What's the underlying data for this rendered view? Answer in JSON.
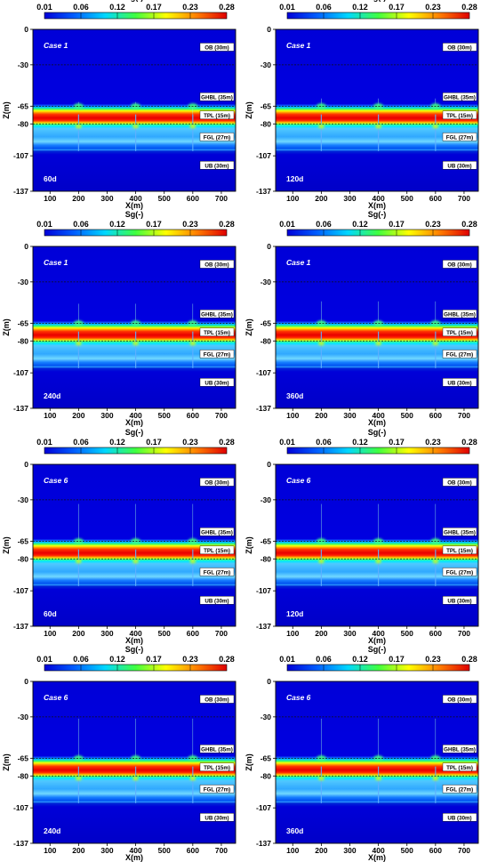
{
  "figure": {
    "panel_order": [
      "case1-60d",
      "case1-120d",
      "case1-240d",
      "case1-360d",
      "case6-60d",
      "case6-120d",
      "case6-240d",
      "case6-360d"
    ]
  },
  "colorbar": {
    "title": "Sg(-)",
    "ticks": [
      "0.01",
      "0.06",
      "0.12",
      "0.17",
      "0.23",
      "0.28"
    ],
    "stops": [
      "#0000d8",
      "#0060ff",
      "#00d8ff",
      "#40ff40",
      "#ffff00",
      "#ff8000",
      "#e00000"
    ]
  },
  "chart_data": [
    {
      "id": "case1-60d",
      "type": "heatmap",
      "case_label": "Case  1",
      "time_label": "60d",
      "xlabel": "X(m)",
      "ylabel": "Z(m)",
      "xticks": [
        "100",
        "200",
        "300",
        "400",
        "500",
        "600",
        "700"
      ],
      "yticks": [
        "0",
        "-30",
        "-65",
        "-80",
        "-107",
        "-137"
      ],
      "xlim": [
        40,
        750
      ],
      "ylim": [
        -137,
        0
      ],
      "plume_tips": [
        -60,
        -60,
        -75
      ],
      "plume_tip_values": [
        0.06,
        0.06,
        0.06
      ],
      "layers": [
        {
          "label": "OB  (30m)"
        },
        {
          "label": "GHBL  (35m)"
        },
        {
          "label": "TPL  (15m)"
        },
        {
          "label": "FGL  (27m)"
        },
        {
          "label": "UB  (30m)"
        }
      ]
    },
    {
      "id": "case1-120d",
      "type": "heatmap",
      "case_label": "Case  1",
      "time_label": "120d",
      "xlabel": "X(m)",
      "ylabel": "Z(m)",
      "xticks": [
        "100",
        "200",
        "300",
        "400",
        "500",
        "600",
        "700"
      ],
      "yticks": [
        "0",
        "-30",
        "-65",
        "-80",
        "-107",
        "-137"
      ],
      "xlim": [
        40,
        750
      ],
      "ylim": [
        -137,
        0
      ],
      "plume_tips": [
        -57,
        -57,
        -57
      ],
      "plume_tip_values": [
        0.06,
        0.06,
        0.06
      ],
      "layers": [
        {
          "label": "OB  (30m)"
        },
        {
          "label": "GHBL  (35m)"
        },
        {
          "label": "TPL  (15m)"
        },
        {
          "label": "FGL  (27m)"
        },
        {
          "label": "UB  (30m)"
        }
      ]
    },
    {
      "id": "case1-240d",
      "type": "heatmap",
      "case_label": "Case  1",
      "time_label": "240d",
      "xlabel": "X(m)",
      "ylabel": "Z(m)",
      "xticks": [
        "100",
        "200",
        "300",
        "400",
        "500",
        "600",
        "700"
      ],
      "yticks": [
        "0",
        "-30",
        "-65",
        "-80",
        "-107",
        "-137"
      ],
      "xlim": [
        40,
        750
      ],
      "ylim": [
        -137,
        0
      ],
      "plume_tips": [
        -47,
        -47,
        -47
      ],
      "plume_tip_values": [
        0.06,
        0.06,
        0.06
      ],
      "layers": [
        {
          "label": "OB  (30m)"
        },
        {
          "label": "GHBL  (35m)"
        },
        {
          "label": "TPL  (15m)"
        },
        {
          "label": "FGL  (27m)"
        },
        {
          "label": "UB  (30m)"
        }
      ]
    },
    {
      "id": "case1-360d",
      "type": "heatmap",
      "case_label": "Case  1",
      "time_label": "360d",
      "xlabel": "X(m)",
      "ylabel": "Z(m)",
      "xticks": [
        "100",
        "200",
        "300",
        "400",
        "500",
        "600",
        "700"
      ],
      "yticks": [
        "0",
        "-30",
        "-65",
        "-80",
        "-107",
        "-137"
      ],
      "xlim": [
        40,
        750
      ],
      "ylim": [
        -137,
        0
      ],
      "plume_tips": [
        -45,
        -45,
        -45
      ],
      "plume_tip_values": [
        0.06,
        0.06,
        0.06
      ],
      "layers": [
        {
          "label": "OB  (30m)"
        },
        {
          "label": "GHBL  (35m)"
        },
        {
          "label": "TPL  (15m)"
        },
        {
          "label": "FGL  (27m)"
        },
        {
          "label": "UB  (30m)"
        }
      ]
    },
    {
      "id": "case6-60d",
      "type": "heatmap",
      "case_label": "Case  6",
      "time_label": "60d",
      "xlabel": "X(m)",
      "ylabel": "Z(m)",
      "xticks": [
        "100",
        "200",
        "300",
        "400",
        "500",
        "600",
        "700"
      ],
      "yticks": [
        "0",
        "-30",
        "-65",
        "-80",
        "-107",
        "-137"
      ],
      "xlim": [
        40,
        750
      ],
      "ylim": [
        -137,
        0
      ],
      "plume_tips": [
        -32,
        -32,
        -32
      ],
      "plume_tip_values": [
        0.12,
        0.12,
        0.12
      ],
      "layers": [
        {
          "label": "OB  (30m)"
        },
        {
          "label": "GHBL  (35m)"
        },
        {
          "label": "TPL  (15m)"
        },
        {
          "label": "FGL  (27m)"
        },
        {
          "label": "UB  (30m)"
        }
      ]
    },
    {
      "id": "case6-120d",
      "type": "heatmap",
      "case_label": "Case  6",
      "time_label": "120d",
      "xlabel": "X(m)",
      "ylabel": "Z(m)",
      "xticks": [
        "100",
        "200",
        "300",
        "400",
        "500",
        "600",
        "700"
      ],
      "yticks": [
        "0",
        "-30",
        "-65",
        "-80",
        "-107",
        "-137"
      ],
      "xlim": [
        40,
        750
      ],
      "ylim": [
        -137,
        0
      ],
      "plume_tips": [
        -32,
        -32,
        -32
      ],
      "plume_tip_values": [
        0.12,
        0.12,
        0.12
      ],
      "layers": [
        {
          "label": "OB  (30m)"
        },
        {
          "label": "GHBL  (35m)"
        },
        {
          "label": "TPL  (15m)"
        },
        {
          "label": "FGL  (27m)"
        },
        {
          "label": "UB  (30m)"
        }
      ]
    },
    {
      "id": "case6-240d",
      "type": "heatmap",
      "case_label": "Case  6",
      "time_label": "240d",
      "xlabel": "X(m)",
      "ylabel": "Z(m)",
      "xticks": [
        "100",
        "200",
        "300",
        "400",
        "500",
        "600",
        "700"
      ],
      "yticks": [
        "0",
        "-30",
        "-65",
        "-80",
        "-107",
        "-137"
      ],
      "xlim": [
        40,
        750
      ],
      "ylim": [
        -137,
        0
      ],
      "plume_tips": [
        -30,
        -30,
        -30
      ],
      "plume_tip_values": [
        0.12,
        0.12,
        0.12
      ],
      "layers": [
        {
          "label": "OB  (30m)"
        },
        {
          "label": "GHBL  (35m)"
        },
        {
          "label": "TPL  (15m)"
        },
        {
          "label": "FGL  (27m)"
        },
        {
          "label": "UB  (30m)"
        }
      ]
    },
    {
      "id": "case6-360d",
      "type": "heatmap",
      "case_label": "Case  6",
      "time_label": "360d",
      "xlabel": "X(m)",
      "ylabel": "Z(m)",
      "xticks": [
        "100",
        "200",
        "300",
        "400",
        "500",
        "600",
        "700"
      ],
      "yticks": [
        "0",
        "-30",
        "-65",
        "-80",
        "-107",
        "-137"
      ],
      "xlim": [
        40,
        750
      ],
      "ylim": [
        -137,
        0
      ],
      "plume_tips": [
        -30,
        -30,
        -30
      ],
      "plume_tip_values": [
        0.12,
        0.12,
        0.12
      ],
      "layers": [
        {
          "label": "OB  (30m)"
        },
        {
          "label": "GHBL  (35m)"
        },
        {
          "label": "TPL  (15m)"
        },
        {
          "label": "FGL  (27m)"
        },
        {
          "label": "UB  (30m)"
        }
      ]
    }
  ],
  "wells_x": [
    200,
    400,
    600
  ]
}
